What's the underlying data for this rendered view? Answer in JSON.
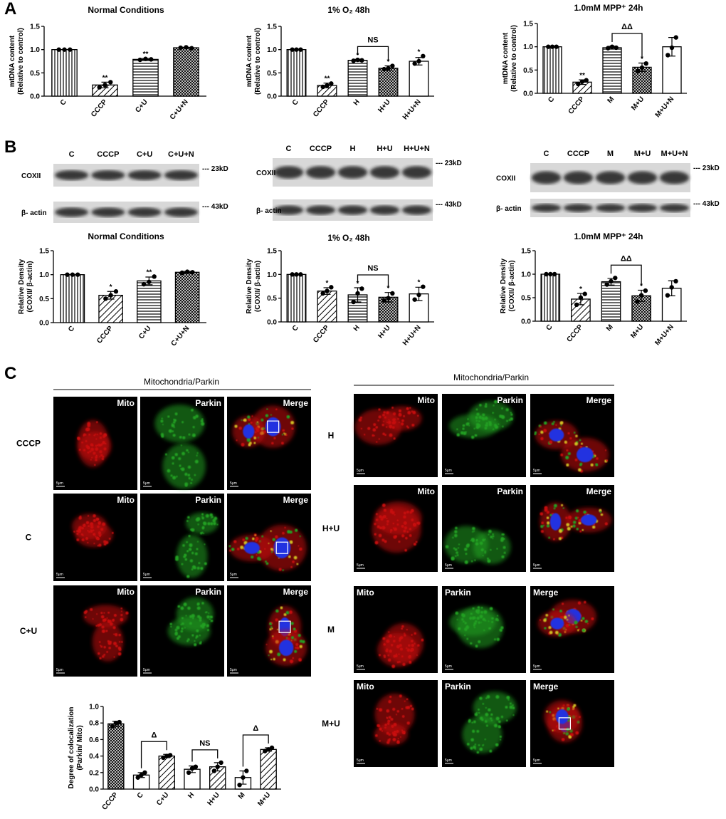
{
  "panels": [
    "A",
    "B",
    "C"
  ],
  "chart_data": [
    {
      "type": "bar",
      "title": "Normal Conditions",
      "ylabel": [
        "mtDNA content",
        "(Relative to control)"
      ],
      "categories": [
        "C",
        "CCCP",
        "C+U",
        "C+U+N"
      ],
      "values": [
        1.0,
        0.24,
        0.79,
        1.04
      ],
      "errors": [
        0.0,
        0.06,
        0.02,
        0.01
      ],
      "points": [
        [
          1,
          1,
          1
        ],
        [
          0.19,
          0.24,
          0.3
        ],
        [
          0.78,
          0.8,
          0.79
        ],
        [
          1.04,
          1.05,
          1.03
        ]
      ],
      "annotations": [
        null,
        "**",
        "**",
        null
      ],
      "brackets": [],
      "patterns": [
        "vertical",
        "diagonal",
        "horizontal",
        "crosshatch"
      ],
      "ylim": [
        0,
        1.5
      ],
      "yticks": [
        {
          "value": 0,
          "label": "0.0"
        },
        0.5,
        {
          "value": 1,
          "label": "1.0"
        },
        1.5
      ]
    },
    {
      "type": "bar",
      "title": "1% O₂  48h",
      "ylabel": [
        "mtDNA content",
        "(Relative to control)"
      ],
      "categories": [
        "C",
        "CCCP",
        "H",
        "H+U",
        "H+U+N"
      ],
      "values": [
        1.0,
        0.23,
        0.77,
        0.6,
        0.75
      ],
      "errors": [
        0.0,
        0.05,
        0.02,
        0.05,
        0.08
      ],
      "points": [
        [
          1,
          1,
          1
        ],
        [
          0.2,
          0.23,
          0.27
        ],
        [
          0.76,
          0.78,
          0.77
        ],
        [
          0.58,
          0.6,
          0.65
        ],
        [
          0.7,
          0.75,
          0.86
        ]
      ],
      "annotations": [
        null,
        "**",
        "*",
        "*",
        "*"
      ],
      "brackets": [
        {
          "categories": [
            2,
            3
          ],
          "label": "NS"
        }
      ],
      "patterns": [
        "vertical",
        "diagonal",
        "horizontal",
        "crosshatch",
        "none"
      ],
      "ylim": [
        0,
        1.5
      ],
      "yticks": [
        {
          "value": 0,
          "label": "0.0"
        },
        0.5,
        {
          "value": 1,
          "label": "1.0"
        },
        1.5
      ]
    },
    {
      "type": "bar",
      "title": "1.0mM MPP⁺  24h",
      "ylabel": [
        "mtDNA content",
        "(Relative to control)"
      ],
      "categories": [
        "C",
        "CCCP",
        "M",
        "M+U",
        "M+U+N"
      ],
      "values": [
        1.0,
        0.24,
        0.98,
        0.56,
        1.0
      ],
      "errors": [
        0.0,
        0.05,
        0.03,
        0.09,
        0.2
      ],
      "points": [
        [
          1,
          1,
          1
        ],
        [
          0.2,
          0.25,
          0.28
        ],
        [
          0.97,
          1.0,
          0.98
        ],
        [
          0.48,
          0.55,
          0.64
        ],
        [
          0.82,
          0.98,
          1.2
        ]
      ],
      "annotations": [
        null,
        "**",
        null,
        "*",
        null
      ],
      "brackets": [
        {
          "categories": [
            2,
            3
          ],
          "label": "ΔΔ"
        }
      ],
      "patterns": [
        "vertical",
        "diagonal",
        "horizontal",
        "crosshatch",
        "none"
      ],
      "ylim": [
        0,
        1.5
      ],
      "yticks": [
        {
          "value": 0,
          "label": "0.0"
        },
        0.5,
        {
          "value": 1,
          "label": "1.0"
        },
        1.5
      ]
    },
    {
      "type": "bar",
      "title": "Normal Conditions",
      "ylabel": [
        "Relative Density",
        "(COXII/ β-actin)"
      ],
      "categories": [
        "C",
        "CCCP",
        "C+U",
        "C+U+N"
      ],
      "values": [
        1.0,
        0.57,
        0.87,
        1.05
      ],
      "errors": [
        0.0,
        0.08,
        0.08,
        0.02
      ],
      "points": [
        [
          1,
          1,
          1
        ],
        [
          0.5,
          0.57,
          0.65
        ],
        [
          0.8,
          0.85,
          0.96
        ],
        [
          1.04,
          1.06,
          1.05
        ]
      ],
      "annotations": [
        null,
        "*",
        "**",
        null
      ],
      "brackets": [],
      "patterns": [
        "vertical",
        "diagonal",
        "horizontal",
        "crosshatch"
      ],
      "ylim": [
        0,
        1.5
      ],
      "yticks": [
        {
          "value": 0,
          "label": "0.0"
        },
        0.5,
        {
          "value": 1,
          "label": "1.0"
        },
        1.5
      ]
    },
    {
      "type": "bar",
      "title": "1% O₂  48h",
      "ylabel": [
        "Relative Density",
        "(COXII/ β-actin)"
      ],
      "categories": [
        "C",
        "CCCP",
        "H",
        "H+U",
        "H+U+N"
      ],
      "values": [
        1.0,
        0.65,
        0.57,
        0.52,
        0.59
      ],
      "errors": [
        0.0,
        0.07,
        0.15,
        0.1,
        0.14
      ],
      "points": [
        [
          1,
          1,
          1
        ],
        [
          0.6,
          0.65,
          0.73
        ],
        [
          0.42,
          0.6,
          0.7
        ],
        [
          0.45,
          0.5,
          0.6
        ],
        [
          0.47,
          0.57,
          0.74
        ]
      ],
      "annotations": [
        null,
        "*",
        "*",
        "*",
        "*"
      ],
      "brackets": [
        {
          "categories": [
            2,
            3
          ],
          "label": "NS"
        }
      ],
      "patterns": [
        "vertical",
        "diagonal",
        "horizontal",
        "crosshatch",
        "none"
      ],
      "ylim": [
        0,
        1.5
      ],
      "yticks": [
        {
          "value": 0,
          "label": "0.0"
        },
        0.5,
        {
          "value": 1,
          "label": "1.0"
        },
        1.5
      ]
    },
    {
      "type": "bar",
      "title": "1.0mM MPP⁺  24h",
      "ylabel": [
        "Relative Density",
        "(COXII/ β-actin)"
      ],
      "categories": [
        "C",
        "CCCP",
        "M",
        "M+U",
        "M+U+N"
      ],
      "values": [
        1.0,
        0.47,
        0.84,
        0.54,
        0.7
      ],
      "errors": [
        0.0,
        0.12,
        0.07,
        0.12,
        0.16
      ],
      "points": [
        [
          1,
          1,
          1
        ],
        [
          0.35,
          0.5,
          0.58
        ],
        [
          0.78,
          0.85,
          0.92
        ],
        [
          0.42,
          0.55,
          0.65
        ],
        [
          0.55,
          0.72,
          0.85
        ]
      ],
      "annotations": [
        null,
        "*",
        null,
        "*",
        null
      ],
      "brackets": [
        {
          "categories": [
            2,
            3
          ],
          "label": "ΔΔ"
        }
      ],
      "patterns": [
        "vertical",
        "diagonal",
        "horizontal",
        "crosshatch",
        "none"
      ],
      "ylim": [
        0,
        1.5
      ],
      "yticks": [
        {
          "value": 0,
          "label": "0.0"
        },
        0.5,
        {
          "value": 1,
          "label": "1.0"
        },
        1.5
      ]
    },
    {
      "type": "bar",
      "ylabel": [
        "Degree of colocalization",
        "(Parkin/ Mito)"
      ],
      "categories": [
        "CCCP",
        "C",
        "C+U",
        "H",
        "H+U",
        "M",
        "M+U"
      ],
      "values": [
        0.79,
        0.17,
        0.4,
        0.24,
        0.27,
        0.14,
        0.48
      ],
      "errors": [
        0.03,
        0.03,
        0.02,
        0.04,
        0.05,
        0.08,
        0.02
      ],
      "points": [
        [
          0.76,
          0.8,
          0.81
        ],
        [
          0.14,
          0.17,
          0.2
        ],
        [
          0.38,
          0.4,
          0.41
        ],
        [
          0.2,
          0.25,
          0.27
        ],
        [
          0.22,
          0.27,
          0.32
        ],
        [
          0.05,
          0.14,
          0.22
        ],
        [
          0.46,
          0.48,
          0.5
        ]
      ],
      "annotations": [
        null,
        null,
        null,
        null,
        null,
        null,
        null
      ],
      "brackets": [
        {
          "categories": [
            1,
            2
          ],
          "label": "Δ"
        },
        {
          "categories": [
            3,
            4
          ],
          "label": "NS"
        },
        {
          "categories": [
            5,
            6
          ],
          "label": "Δ"
        }
      ],
      "patterns": [
        "crosshatch",
        "none",
        "diagonal",
        "none",
        "diagonal",
        "none",
        "diagonal"
      ],
      "ylim": [
        0,
        1.0
      ],
      "yticks": [
        {
          "value": 0,
          "label": "0.0"
        },
        0.2,
        0.4,
        0.6,
        0.8,
        {
          "value": 1,
          "label": "1.0"
        }
      ]
    }
  ],
  "blots": [
    {
      "lanes": [
        "C",
        "CCCP",
        "C+U",
        "C+U+N"
      ],
      "rows": [
        {
          "name": "COXII",
          "size": "--- 23kD"
        },
        {
          "name": "β- actin",
          "size": "--- 43kD"
        }
      ]
    },
    {
      "lanes": [
        "C",
        "CCCP",
        "H",
        "H+U",
        "H+U+N"
      ],
      "rows": [
        {
          "name": "COXII",
          "size": "--- 23kD"
        },
        {
          "name": "β- actin",
          "size": "--- 43kD"
        }
      ]
    },
    {
      "lanes": [
        "C",
        "CCCP",
        "M",
        "M+U",
        "M+U+N"
      ],
      "rows": [
        {
          "name": "COXII",
          "size": "--- 23kD"
        },
        {
          "name": "β- actin",
          "size": "--- 43kD"
        }
      ]
    }
  ],
  "microscopy": {
    "header": "Mitochondria/Parkin",
    "channels": [
      "Mito",
      "Parkin",
      "Merge"
    ],
    "scale": "5μm",
    "left_rows": [
      "CCCP",
      "C",
      "C+U"
    ],
    "right_rows": [
      "H",
      "H+U",
      "M",
      "M+U"
    ]
  }
}
